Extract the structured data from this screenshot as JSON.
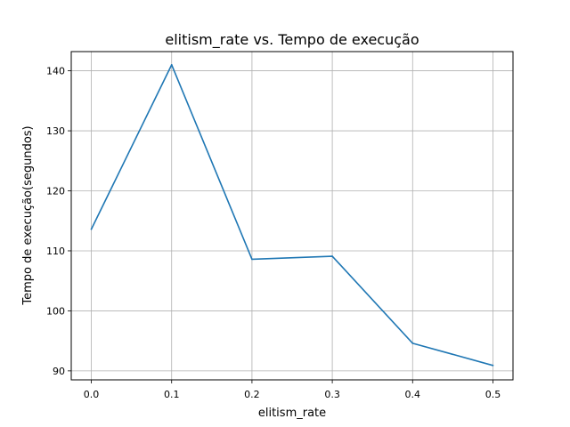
{
  "chart_data": {
    "type": "line",
    "title": "elitism_rate vs. Tempo de execução",
    "xlabel": "elitism_rate",
    "ylabel": "Tempo de execução(segundos)",
    "x": [
      0.0,
      0.1,
      0.2,
      0.3,
      0.4,
      0.5
    ],
    "series": [
      {
        "values": [
          113.6,
          141.0,
          108.6,
          109.1,
          94.6,
          90.9
        ]
      }
    ],
    "xlim": [
      -0.025,
      0.525
    ],
    "ylim": [
      88.5,
      143.2
    ],
    "xticks": [
      0.0,
      0.1,
      0.2,
      0.3,
      0.4,
      0.5
    ],
    "xtick_labels": [
      "0.0",
      "0.1",
      "0.2",
      "0.3",
      "0.4",
      "0.5"
    ],
    "yticks": [
      90,
      100,
      110,
      120,
      130,
      140
    ],
    "ytick_labels": [
      "90",
      "100",
      "110",
      "120",
      "130",
      "140"
    ],
    "grid": true,
    "colors": {
      "line": "#1f77b4",
      "grid": "#b0b0b0",
      "axes": "#000000"
    }
  }
}
